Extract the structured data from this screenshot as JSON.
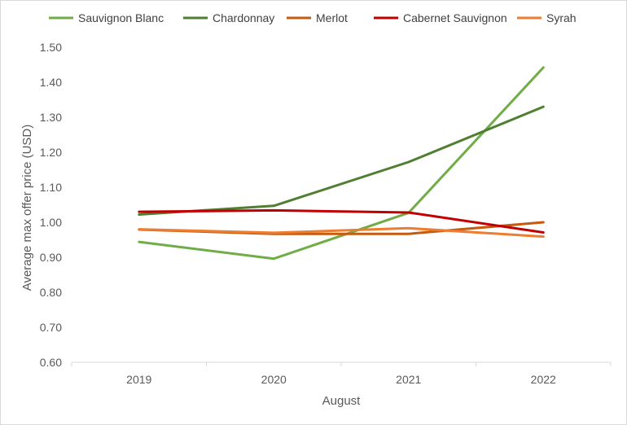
{
  "chart_data": {
    "type": "line",
    "title": "",
    "xlabel": "August",
    "ylabel": "Average max offer price (USD)",
    "categories": [
      "2019",
      "2020",
      "2021",
      "2022"
    ],
    "ylim": [
      0.6,
      1.5
    ],
    "yticks": [
      "0.60",
      "0.70",
      "0.80",
      "0.90",
      "1.00",
      "1.10",
      "1.20",
      "1.30",
      "1.40",
      "1.50"
    ],
    "grid": false,
    "legend_position": "top",
    "series": [
      {
        "name": "Sauvignon Blanc",
        "color": "#70ad47",
        "values": [
          0.944,
          0.896,
          1.027,
          1.442
        ]
      },
      {
        "name": "Chardonnay",
        "color": "#507e32",
        "values": [
          1.022,
          1.047,
          1.172,
          1.33
        ]
      },
      {
        "name": "Merlot",
        "color": "#c55a11",
        "values": [
          0.979,
          0.967,
          0.967,
          1.0
        ]
      },
      {
        "name": "Cabernet Sauvignon",
        "color": "#c00000",
        "values": [
          1.03,
          1.034,
          1.028,
          0.971
        ]
      },
      {
        "name": "Syrah",
        "color": "#ed7d31",
        "values": [
          0.98,
          0.97,
          0.983,
          0.959
        ]
      }
    ]
  }
}
